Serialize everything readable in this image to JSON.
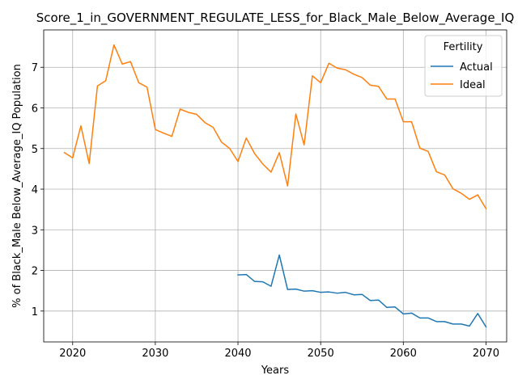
{
  "chart_data": {
    "type": "line",
    "title": "Score_1_in_GOVERNMENT_REGULATE_LESS_for_Black_Male_Below_Average_IQ",
    "xlabel": "Years",
    "ylabel": "% of Black_Male Below_Average_IQ Population",
    "xlim": [
      2016.5,
      2072.5
    ],
    "ylim": [
      0.24,
      7.92
    ],
    "xticks": [
      2020,
      2030,
      2040,
      2050,
      2060,
      2070
    ],
    "yticks": [
      1,
      2,
      3,
      4,
      5,
      6,
      7
    ],
    "grid": true,
    "legend": {
      "title": "Fertility",
      "position": "top-right"
    },
    "series": [
      {
        "name": "Actual",
        "color": "#1f77b4",
        "x": [
          2040,
          2041,
          2042,
          2043,
          2044,
          2045,
          2046,
          2047,
          2048,
          2049,
          2050,
          2051,
          2052,
          2053,
          2054,
          2055,
          2056,
          2057,
          2058,
          2059,
          2060,
          2061,
          2062,
          2063,
          2064,
          2065,
          2066,
          2067,
          2068,
          2069,
          2070
        ],
        "y": [
          1.89,
          1.9,
          1.73,
          1.72,
          1.61,
          2.38,
          1.53,
          1.54,
          1.49,
          1.5,
          1.46,
          1.47,
          1.44,
          1.46,
          1.4,
          1.41,
          1.26,
          1.27,
          1.09,
          1.1,
          0.93,
          0.95,
          0.83,
          0.83,
          0.74,
          0.74,
          0.68,
          0.68,
          0.63,
          0.94,
          0.61
        ]
      },
      {
        "name": "Ideal",
        "color": "#ff7f0e",
        "x": [
          2019,
          2020,
          2021,
          2022,
          2023,
          2024,
          2025,
          2026,
          2027,
          2028,
          2029,
          2030,
          2031,
          2032,
          2033,
          2034,
          2035,
          2036,
          2037,
          2038,
          2039,
          2040,
          2041,
          2042,
          2043,
          2044,
          2045,
          2046,
          2047,
          2048,
          2049,
          2050,
          2051,
          2052,
          2053,
          2054,
          2055,
          2056,
          2057,
          2058,
          2059,
          2060,
          2061,
          2062,
          2063,
          2064,
          2065,
          2066,
          2067,
          2068,
          2069,
          2070
        ],
        "y": [
          4.9,
          4.77,
          5.56,
          4.63,
          6.54,
          6.67,
          7.55,
          7.08,
          7.14,
          6.62,
          6.51,
          5.47,
          5.38,
          5.3,
          5.97,
          5.89,
          5.84,
          5.64,
          5.52,
          5.16,
          5.0,
          4.68,
          5.26,
          4.88,
          4.62,
          4.42,
          4.9,
          4.08,
          5.85,
          5.09,
          6.79,
          6.62,
          7.1,
          6.98,
          6.94,
          6.83,
          6.75,
          6.56,
          6.53,
          6.22,
          6.22,
          5.66,
          5.66,
          5.01,
          4.93,
          4.43,
          4.35,
          4.01,
          3.9,
          3.75,
          3.86,
          3.52
        ]
      }
    ]
  }
}
